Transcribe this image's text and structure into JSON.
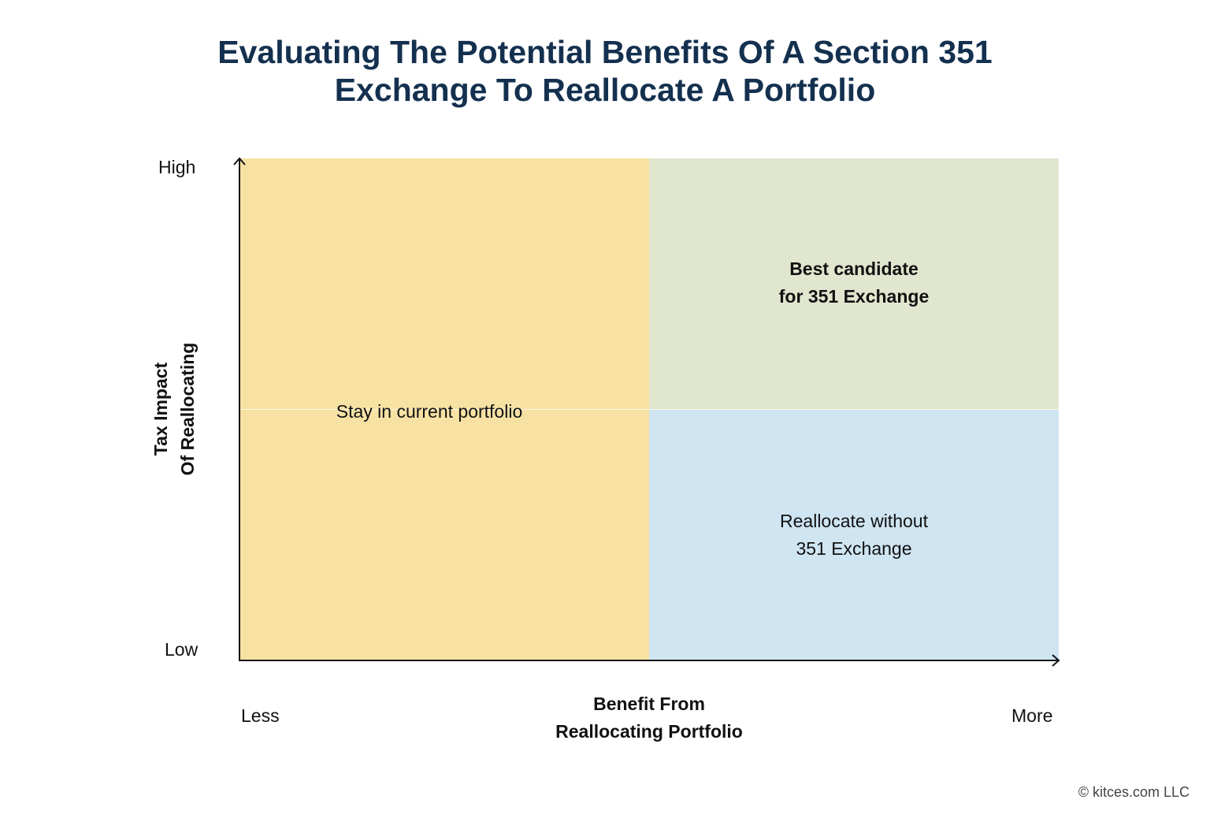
{
  "title": {
    "line1": "Evaluating The Potential Benefits Of A Section 351",
    "line2": "Exchange To Reallocate A Portfolio"
  },
  "colors": {
    "title": "#14304f",
    "stay": "#f7e2a4",
    "best": "#e1e6cf",
    "reallocate": "#cfe5f2",
    "axis": "#111111"
  },
  "quadrants": {
    "stay": "Stay in current portfolio",
    "best": {
      "line1": "Best candidate",
      "line2": "for 351 Exchange"
    },
    "reallocate": {
      "line1": "Reallocate without",
      "line2": "351 Exchange"
    }
  },
  "y_axis": {
    "label_line1": "Tax Impact",
    "label_line2": "Of Reallocating",
    "high": "High",
    "low": "Low"
  },
  "x_axis": {
    "label_line1": "Benefit From",
    "label_line2": "Reallocating Portfolio",
    "less": "Less",
    "more": "More"
  },
  "copyright": "© kitces.com LLC"
}
